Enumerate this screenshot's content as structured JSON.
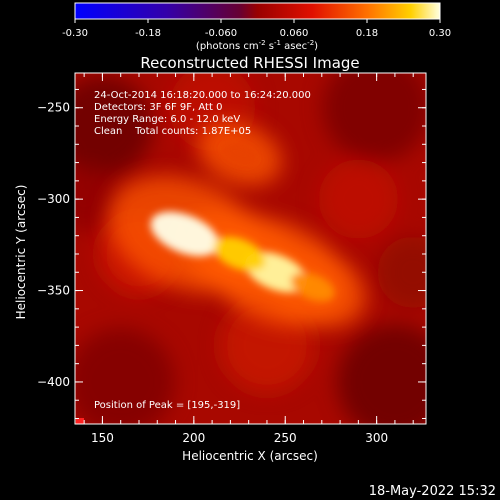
{
  "chart_data": {
    "type": "heatmap",
    "title": "Reconstructed RHESSI Image",
    "xlabel": "Heliocentric X (arcsec)",
    "ylabel": "Heliocentric Y (arcsec)",
    "xlim": [
      135,
      327
    ],
    "ylim": [
      -423,
      -231
    ],
    "xticks": [
      150,
      200,
      250,
      300
    ],
    "yticks": [
      -250,
      -300,
      -350,
      -400
    ],
    "colorbar": {
      "range": [
        -0.3,
        0.3
      ],
      "ticks": [
        "-0.30",
        "-0.18",
        "-0.060",
        "0.060",
        "0.18",
        "0.30"
      ],
      "unit_prefix": "(photons cm",
      "unit_sup1": "-2",
      "unit_mid": " s",
      "unit_sup2": "-1",
      "unit_mid2": " asec",
      "unit_sup3": "-2",
      "unit_suffix": ")",
      "colormap": "rainbow-bwr"
    },
    "annotations": [
      "24-Oct-2014 16:18:20.000 to 16:24:20.000",
      "Detectors: 3F 6F 9F, Att 0",
      "Energy Range: 6.0 - 12.0 keV",
      "Clean    Total counts: 1.87E+05"
    ],
    "peak_text": "Position of Peak = [195,-319]",
    "peak": {
      "x": 195,
      "y": -319
    },
    "sources": [
      {
        "x": 195,
        "y": -319,
        "intensity": 0.3
      },
      {
        "x": 245,
        "y": -340,
        "intensity": 0.27
      },
      {
        "x": 225,
        "y": -330,
        "intensity": 0.22
      },
      {
        "x": 265,
        "y": -348,
        "intensity": 0.18
      },
      {
        "x": 225,
        "y": -275,
        "intensity": 0.12
      }
    ],
    "background_level": 0.07
  },
  "footer_timestamp": "18-May-2022 15:32"
}
